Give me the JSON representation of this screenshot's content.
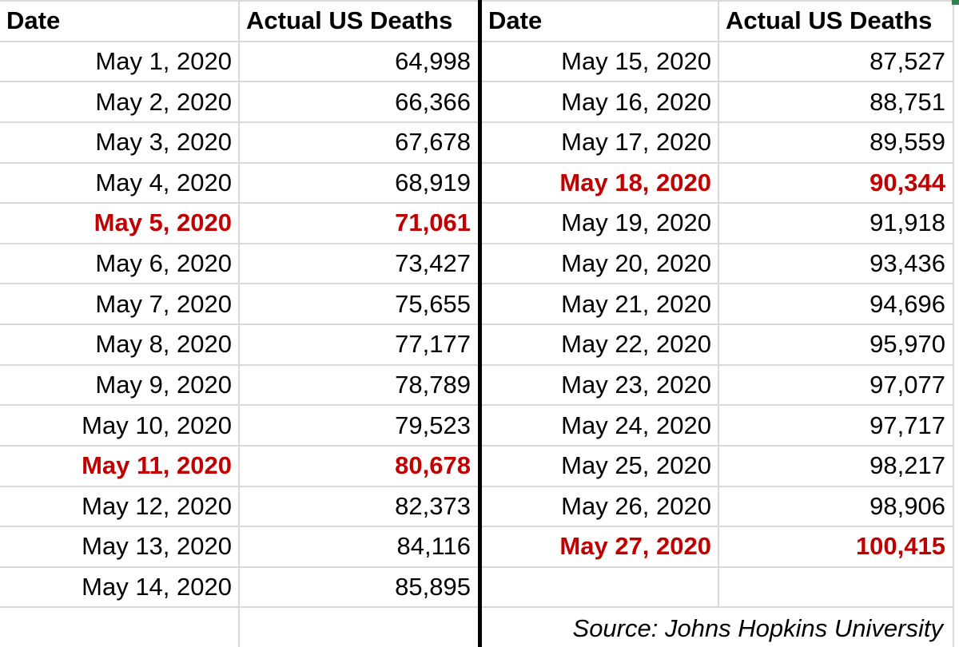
{
  "colors": {
    "highlight_red": "#C00000",
    "gridline": "#D9D9D9",
    "table_divider": "#000000",
    "corner_artifact_green": "#26854C",
    "background": "#FFFFFF",
    "text": "#000000"
  },
  "tables": [
    {
      "headers": {
        "date": "Date",
        "deaths": "Actual US Deaths"
      },
      "rows": [
        {
          "date": "May 1, 2020",
          "deaths": "64,998",
          "highlight": false
        },
        {
          "date": "May 2, 2020",
          "deaths": "66,366",
          "highlight": false
        },
        {
          "date": "May 3, 2020",
          "deaths": "67,678",
          "highlight": false
        },
        {
          "date": "May 4, 2020",
          "deaths": "68,919",
          "highlight": false
        },
        {
          "date": "May 5, 2020",
          "deaths": "71,061",
          "highlight": true
        },
        {
          "date": "May 6, 2020",
          "deaths": "73,427",
          "highlight": false
        },
        {
          "date": "May 7, 2020",
          "deaths": "75,655",
          "highlight": false
        },
        {
          "date": "May 8, 2020",
          "deaths": "77,177",
          "highlight": false
        },
        {
          "date": "May 9, 2020",
          "deaths": "78,789",
          "highlight": false
        },
        {
          "date": "May 10, 2020",
          "deaths": "79,523",
          "highlight": false
        },
        {
          "date": "May 11, 2020",
          "deaths": "80,678",
          "highlight": true
        },
        {
          "date": "May 12, 2020",
          "deaths": "82,373",
          "highlight": false
        },
        {
          "date": "May 13, 2020",
          "deaths": "84,116",
          "highlight": false
        },
        {
          "date": "May 14, 2020",
          "deaths": "85,895",
          "highlight": false
        },
        {
          "date": "",
          "deaths": "",
          "highlight": false
        }
      ]
    },
    {
      "headers": {
        "date": "Date",
        "deaths": "Actual US Deaths"
      },
      "rows": [
        {
          "date": "May 15, 2020",
          "deaths": "87,527",
          "highlight": false
        },
        {
          "date": "May 16, 2020",
          "deaths": "88,751",
          "highlight": false
        },
        {
          "date": "May 17, 2020",
          "deaths": "89,559",
          "highlight": false
        },
        {
          "date": "May 18, 2020",
          "deaths": "90,344",
          "highlight": true
        },
        {
          "date": "May 19, 2020",
          "deaths": "91,918",
          "highlight": false
        },
        {
          "date": "May 20, 2020",
          "deaths": "93,436",
          "highlight": false
        },
        {
          "date": "May 21, 2020",
          "deaths": "94,696",
          "highlight": false
        },
        {
          "date": "May 22, 2020",
          "deaths": "95,970",
          "highlight": false
        },
        {
          "date": "May 23, 2020",
          "deaths": "97,077",
          "highlight": false
        },
        {
          "date": "May 24, 2020",
          "deaths": "97,717",
          "highlight": false
        },
        {
          "date": "May 25, 2020",
          "deaths": "98,217",
          "highlight": false
        },
        {
          "date": "May 26, 2020",
          "deaths": "98,906",
          "highlight": false
        },
        {
          "date": "May 27, 2020",
          "deaths": "100,415",
          "highlight": true
        },
        {
          "date": "",
          "deaths": "",
          "highlight": false
        }
      ],
      "source": "Source: Johns Hopkins University"
    }
  ],
  "chart_data": {
    "type": "table",
    "columns": [
      "Date",
      "Actual US Deaths"
    ],
    "rows": [
      [
        "May 1, 2020",
        64998
      ],
      [
        "May 2, 2020",
        66366
      ],
      [
        "May 3, 2020",
        67678
      ],
      [
        "May 4, 2020",
        68919
      ],
      [
        "May 5, 2020",
        71061
      ],
      [
        "May 6, 2020",
        73427
      ],
      [
        "May 7, 2020",
        75655
      ],
      [
        "May 8, 2020",
        77177
      ],
      [
        "May 9, 2020",
        78789
      ],
      [
        "May 10, 2020",
        79523
      ],
      [
        "May 11, 2020",
        80678
      ],
      [
        "May 12, 2020",
        82373
      ],
      [
        "May 13, 2020",
        84116
      ],
      [
        "May 14, 2020",
        85895
      ],
      [
        "May 15, 2020",
        87527
      ],
      [
        "May 16, 2020",
        88751
      ],
      [
        "May 17, 2020",
        89559
      ],
      [
        "May 18, 2020",
        90344
      ],
      [
        "May 19, 2020",
        91918
      ],
      [
        "May 20, 2020",
        93436
      ],
      [
        "May 21, 2020",
        94696
      ],
      [
        "May 22, 2020",
        95970
      ],
      [
        "May 23, 2020",
        97077
      ],
      [
        "May 24, 2020",
        97717
      ],
      [
        "May 25, 2020",
        98217
      ],
      [
        "May 26, 2020",
        98906
      ],
      [
        "May 27, 2020",
        100415
      ]
    ],
    "highlighted_rows": [
      "May 5, 2020",
      "May 11, 2020",
      "May 18, 2020",
      "May 27, 2020"
    ],
    "highlight_style": "bold dark red text",
    "layout": "two side-by-side tables (May 1-14 left, May 15-27 right) separated by a thick black vertical rule",
    "source": "Source: Johns Hopkins University"
  }
}
